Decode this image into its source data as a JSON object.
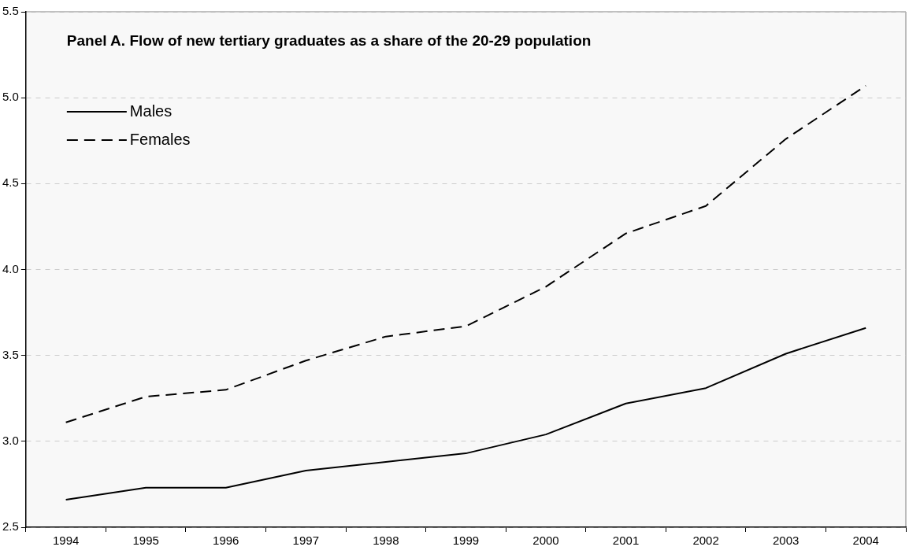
{
  "chart_data": {
    "type": "line",
    "title": "Panel A. Flow of new tertiary graduates as a share of the 20-29 population",
    "categories": [
      "1994",
      "1995",
      "1996",
      "1997",
      "1998",
      "1999",
      "2000",
      "2001",
      "2002",
      "2003",
      "2004"
    ],
    "series": [
      {
        "name": "Males",
        "color": "#000000",
        "line_style": "solid",
        "values": [
          2.66,
          2.73,
          2.73,
          2.83,
          2.88,
          2.93,
          3.04,
          3.22,
          3.31,
          3.51,
          3.66
        ]
      },
      {
        "name": "Females",
        "color": "#000000",
        "line_style": "dashed",
        "values": [
          3.11,
          3.26,
          3.3,
          3.47,
          3.61,
          3.67,
          3.9,
          4.21,
          4.37,
          4.76,
          5.07
        ]
      }
    ],
    "ylim": [
      2.5,
      5.5
    ],
    "yticks": [
      {
        "value": 2.5,
        "label": "2.5"
      },
      {
        "value": 3,
        "label": "3.0"
      },
      {
        "value": 3.5,
        "label": "3.5"
      },
      {
        "value": 4,
        "label": "4.0"
      },
      {
        "value": 4.5,
        "label": "4.5"
      },
      {
        "value": 5,
        "label": "5.0"
      },
      {
        "value": 5.5,
        "label": "5.5"
      }
    ],
    "grid": "y",
    "legend": "top left",
    "marker": "none"
  }
}
